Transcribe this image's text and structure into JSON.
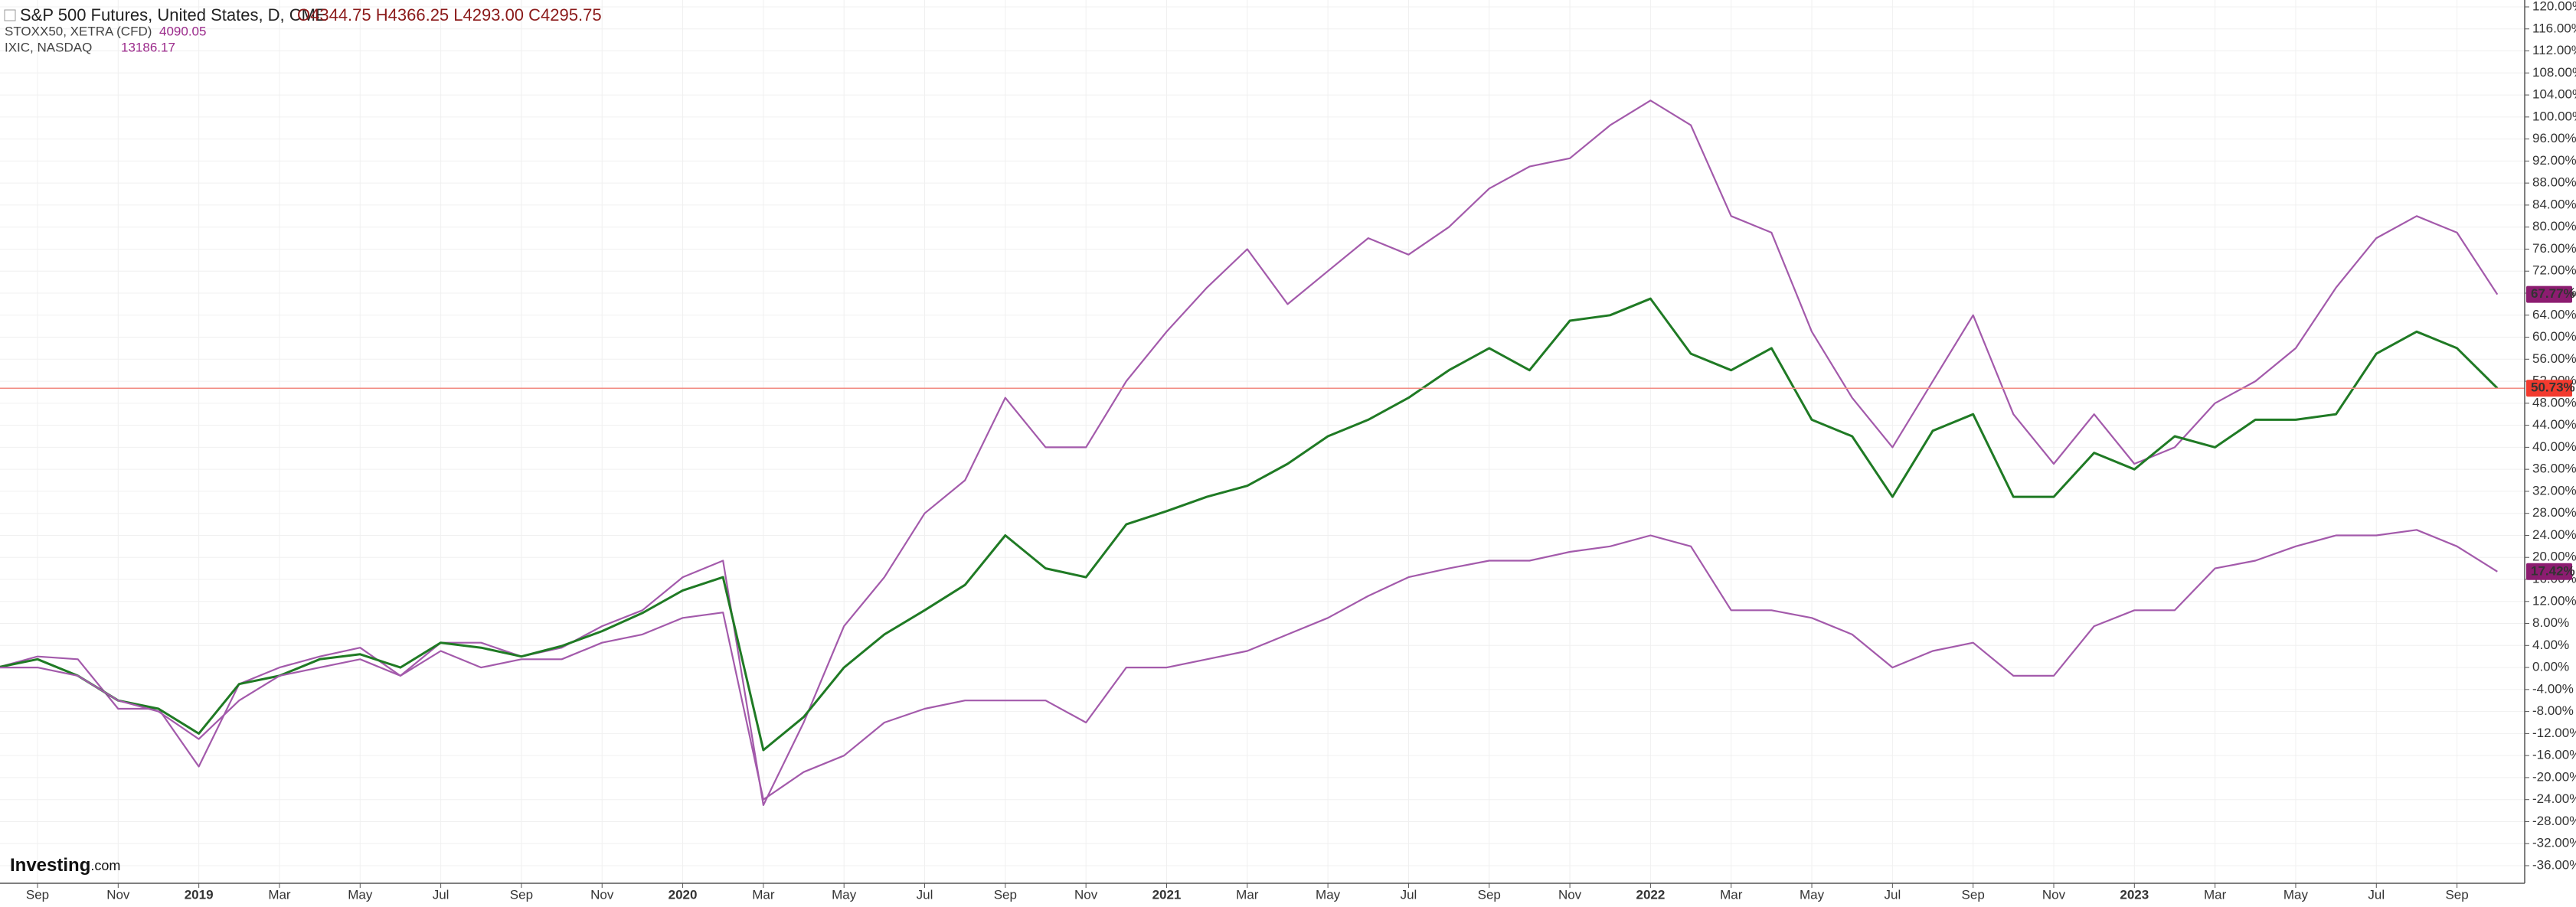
{
  "header": {
    "main": "S&P 500 Futures, United States, D, CME",
    "ohlc": "O4344.75 H4366.25 L4293.00 C4295.75",
    "second": "STOXX50, XETRA (CFD)",
    "second_value": "4090.05",
    "third": "IXIC, NASDAQ",
    "third_value": "13186.17"
  },
  "branding": {
    "logo": "Investing",
    "logo_suffix": ".com"
  },
  "chart_data": {
    "type": "line",
    "x": [
      "2018-08",
      "2018-09",
      "2018-10",
      "2018-11",
      "2018-12",
      "2019-01",
      "2019-02",
      "2019-03",
      "2019-04",
      "2019-05",
      "2019-06",
      "2019-07",
      "2019-08",
      "2019-09",
      "2019-10",
      "2019-11",
      "2019-12",
      "2020-01",
      "2020-02",
      "2020-03",
      "2020-04",
      "2020-05",
      "2020-06",
      "2020-07",
      "2020-08",
      "2020-09",
      "2020-10",
      "2020-11",
      "2020-12",
      "2021-01",
      "2021-02",
      "2021-03",
      "2021-04",
      "2021-05",
      "2021-06",
      "2021-07",
      "2021-08",
      "2021-09",
      "2021-10",
      "2021-11",
      "2021-12",
      "2022-01",
      "2022-02",
      "2022-03",
      "2022-04",
      "2022-05",
      "2022-06",
      "2022-07",
      "2022-08",
      "2022-09",
      "2022-10",
      "2022-11",
      "2022-12",
      "2023-01",
      "2023-02",
      "2023-03",
      "2023-04",
      "2023-05",
      "2023-06",
      "2023-07",
      "2023-08",
      "2023-09",
      "2023-10"
    ],
    "series": [
      {
        "name": "IXIC, NASDAQ",
        "color": "#a35aab",
        "values": [
          0,
          2,
          1.5,
          -7.5,
          -7.5,
          -18,
          -3,
          0,
          2,
          3.6,
          -1.5,
          4.5,
          4.5,
          2,
          3.6,
          7.5,
          10.4,
          16.4,
          19.4,
          -25,
          -10,
          7.5,
          16.4,
          28,
          34,
          49,
          40,
          40,
          52,
          61,
          69,
          76,
          66,
          72,
          78,
          75,
          80,
          87,
          91,
          92.5,
          98.5,
          103,
          98.5,
          82,
          79,
          61,
          49,
          40,
          52,
          64,
          46,
          37,
          46,
          37,
          40,
          48,
          52,
          58,
          69,
          78,
          82,
          79,
          67.77
        ],
        "last_label": {
          "value": 67.77,
          "label": "67.77%"
        },
        "badge_color": "#8c1c70"
      },
      {
        "name": "S&P 500 Futures, United States, D, CME",
        "color": "#1f7a24",
        "values": [
          0,
          1.5,
          -1.5,
          -6,
          -7.5,
          -12,
          -3,
          -1.5,
          1.5,
          2.4,
          0,
          4.5,
          3.6,
          2,
          3.9,
          6.6,
          9.9,
          14,
          16.4,
          -15,
          -9,
          0,
          6,
          10.4,
          15,
          24,
          18,
          16.4,
          26,
          28.4,
          31,
          33,
          37,
          42,
          45,
          49,
          54,
          58,
          54,
          63,
          64,
          67,
          57,
          54,
          58,
          45,
          42,
          31,
          43,
          46,
          31,
          31,
          39,
          36,
          42,
          40,
          45,
          45,
          46,
          57,
          61,
          58,
          50.73
        ],
        "last_label": {
          "value": 50.73,
          "label": "50.73%"
        },
        "badge_color": "#f23a2e"
      },
      {
        "name": "STOXX50, XETRA (CFD)",
        "color": "#a35aab",
        "values": [
          0,
          0,
          -1.5,
          -6,
          -8,
          -13,
          -6,
          -1.5,
          0,
          1.5,
          -1.5,
          3,
          0,
          1.5,
          1.5,
          4.5,
          6,
          9,
          10,
          -24,
          -19,
          -16,
          -10,
          -7.5,
          -6,
          -6,
          -6,
          -10,
          0,
          0,
          1.5,
          3,
          6,
          9,
          13,
          16.4,
          18,
          19.4,
          19.4,
          21,
          22,
          24,
          22,
          10.4,
          10.4,
          9,
          6,
          0,
          3,
          4.5,
          -1.5,
          -1.5,
          7.5,
          10.4,
          10.4,
          18,
          19.4,
          22,
          24,
          24,
          25,
          22,
          17.42
        ],
        "last_label": {
          "value": 17.42,
          "label": "17.42%"
        },
        "badge_color": "#8c1c70"
      }
    ],
    "ylim": [
      -36,
      120
    ],
    "yticks": [
      {
        "value": -36,
        "label": "-36.00%"
      },
      {
        "value": -32,
        "label": "-32.00%"
      },
      {
        "value": -28,
        "label": "-28.00%"
      },
      {
        "value": -24,
        "label": "-24.00%"
      },
      {
        "value": -20,
        "label": "-20.00%"
      },
      {
        "value": -16,
        "label": "-16.00%"
      },
      {
        "value": -12,
        "label": "-12.00%"
      },
      {
        "value": -8,
        "label": "-8.00%"
      },
      {
        "value": -4,
        "label": "-4.00%"
      },
      {
        "value": 0,
        "label": "0.00%"
      },
      {
        "value": 4,
        "label": "4.00%"
      },
      {
        "value": 8,
        "label": "8.00%"
      },
      {
        "value": 12,
        "label": "12.00%"
      },
      {
        "value": 16,
        "label": "16.00%"
      },
      {
        "value": 20,
        "label": "20.00%"
      },
      {
        "value": 24,
        "label": "24.00%"
      },
      {
        "value": 28,
        "label": "28.00%"
      },
      {
        "value": 32,
        "label": "32.00%"
      },
      {
        "value": 36,
        "label": "36.00%"
      },
      {
        "value": 40,
        "label": "40.00%"
      },
      {
        "value": 44,
        "label": "44.00%"
      },
      {
        "value": 48,
        "label": "48.00%"
      },
      {
        "value": 52,
        "label": "52.00%"
      },
      {
        "value": 56,
        "label": "56.00%"
      },
      {
        "value": 60,
        "label": "60.00%"
      },
      {
        "value": 64,
        "label": "64.00%"
      },
      {
        "value": 68,
        "label": "68.00%"
      },
      {
        "value": 72,
        "label": "72.00%"
      },
      {
        "value": 76,
        "label": "76.00%"
      },
      {
        "value": 80,
        "label": "80.00%"
      },
      {
        "value": 84,
        "label": "84.00%"
      },
      {
        "value": 88,
        "label": "88.00%"
      },
      {
        "value": 92,
        "label": "92.00%"
      },
      {
        "value": 96,
        "label": "96.00%"
      },
      {
        "value": 100,
        "label": "100.00%"
      },
      {
        "value": 104,
        "label": "104.00%"
      },
      {
        "value": 108,
        "label": "108.00%"
      },
      {
        "value": 112,
        "label": "112.00%"
      },
      {
        "value": 116,
        "label": "116.00%"
      },
      {
        "value": 120,
        "label": "120.00%"
      }
    ],
    "xticks": [
      {
        "value": "2018-09",
        "label": "Sep"
      },
      {
        "value": "2018-11",
        "label": "Nov"
      },
      {
        "value": "2019-01",
        "label": "2019"
      },
      {
        "value": "2019-03",
        "label": "Mar"
      },
      {
        "value": "2019-05",
        "label": "May"
      },
      {
        "value": "2019-07",
        "label": "Jul"
      },
      {
        "value": "2019-09",
        "label": "Sep"
      },
      {
        "value": "2019-11",
        "label": "Nov"
      },
      {
        "value": "2020-01",
        "label": "2020"
      },
      {
        "value": "2020-03",
        "label": "Mar"
      },
      {
        "value": "2020-05",
        "label": "May"
      },
      {
        "value": "2020-07",
        "label": "Jul"
      },
      {
        "value": "2020-09",
        "label": "Sep"
      },
      {
        "value": "2020-11",
        "label": "Nov"
      },
      {
        "value": "2021-01",
        "label": "2021"
      },
      {
        "value": "2021-03",
        "label": "Mar"
      },
      {
        "value": "2021-05",
        "label": "May"
      },
      {
        "value": "2021-07",
        "label": "Jul"
      },
      {
        "value": "2021-09",
        "label": "Sep"
      },
      {
        "value": "2021-11",
        "label": "Nov"
      },
      {
        "value": "2022-01",
        "label": "2022"
      },
      {
        "value": "2022-03",
        "label": "Mar"
      },
      {
        "value": "2022-05",
        "label": "May"
      },
      {
        "value": "2022-07",
        "label": "Jul"
      },
      {
        "value": "2022-09",
        "label": "Sep"
      },
      {
        "value": "2022-11",
        "label": "Nov"
      },
      {
        "value": "2023-01",
        "label": "2023"
      },
      {
        "value": "2023-03",
        "label": "Mar"
      },
      {
        "value": "2023-05",
        "label": "May"
      },
      {
        "value": "2023-07",
        "label": "Jul"
      },
      {
        "value": "2023-09",
        "label": "Sep"
      }
    ],
    "grid": true,
    "price_line_series": 1
  }
}
